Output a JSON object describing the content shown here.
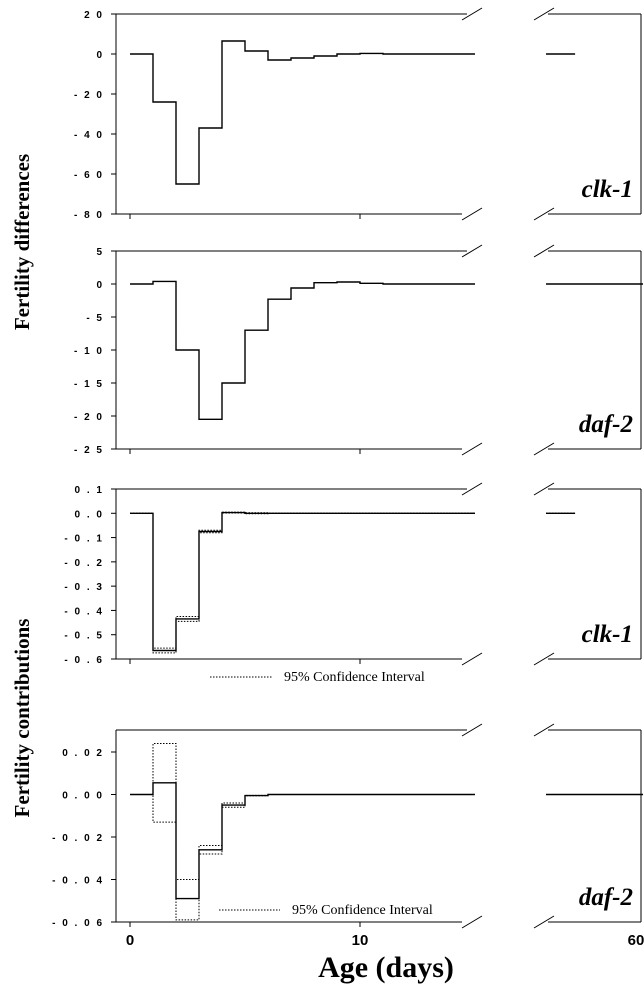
{
  "figure": {
    "ylabel_top": "Fertility differences",
    "ylabel_bottom": "Fertility contributions",
    "xlabel": "Age (days)",
    "ci_label": "95% Confidence Interval"
  },
  "chart_data": [
    {
      "type": "line",
      "step": true,
      "gene": "clk-1",
      "ylim": [
        -80,
        20
      ],
      "yticks": [
        "2 0",
        "0",
        "- 2 0",
        "- 4 0",
        "- 6 0",
        "- 8 0"
      ],
      "ytick_values": [
        20,
        0,
        -20,
        -40,
        -60,
        -80
      ],
      "xticks": [
        "0",
        "10",
        "60"
      ],
      "axis_break": true,
      "series": [
        {
          "x": [
            0,
            1,
            2,
            3,
            4,
            5,
            6,
            7,
            8,
            9,
            10,
            11,
            12,
            13,
            14,
            15
          ],
          "values": [
            0,
            -24,
            -65,
            -37,
            6.5,
            1.5,
            -3,
            -2,
            -1,
            0,
            0.3,
            0,
            0,
            0,
            0,
            0
          ]
        }
      ],
      "late_x": [
        58,
        61
      ],
      "late_value": 0
    },
    {
      "type": "line",
      "step": true,
      "gene": "daf-2",
      "ylim": [
        -25,
        5
      ],
      "yticks": [
        "5",
        "0",
        "- 5",
        "- 1 0",
        "- 1 5",
        "- 2 0",
        "- 2 5"
      ],
      "ytick_values": [
        5,
        0,
        -5,
        -10,
        -15,
        -20,
        -25
      ],
      "xticks": [
        "0",
        "10",
        "60"
      ],
      "axis_break": true,
      "series": [
        {
          "x": [
            0,
            1,
            2,
            3,
            4,
            5,
            6,
            7,
            8,
            9,
            10,
            11,
            12,
            13,
            14,
            15
          ],
          "values": [
            0,
            0.4,
            -10,
            -20.5,
            -15,
            -7,
            -2.3,
            -0.6,
            0.2,
            0.3,
            0.1,
            0,
            0,
            0,
            0,
            0
          ]
        }
      ],
      "late_x": [
        58,
        68
      ],
      "late_value": 0
    },
    {
      "type": "line",
      "step": true,
      "gene": "clk-1",
      "ylim": [
        -0.6,
        0.1
      ],
      "yticks": [
        "0 . 1",
        "0 . 0",
        "- 0 . 1",
        "- 0 . 2",
        "- 0 . 3",
        "- 0 . 4",
        "- 0 . 5",
        "- 0 . 6"
      ],
      "ytick_values": [
        0.1,
        0,
        -0.1,
        -0.2,
        -0.3,
        -0.4,
        -0.5,
        -0.6
      ],
      "xticks": [
        "0",
        "10",
        "60"
      ],
      "axis_break": true,
      "series": [
        {
          "name": "estimate",
          "x": [
            0,
            1,
            2,
            3,
            4,
            5,
            6,
            7,
            8,
            9,
            10,
            11,
            12,
            13,
            14,
            15
          ],
          "values": [
            0,
            -0.565,
            -0.435,
            -0.075,
            0.003,
            0,
            0,
            0,
            0,
            0,
            0,
            0,
            0,
            0,
            0,
            0
          ]
        },
        {
          "name": "ci_upper",
          "x": [
            0,
            1,
            2,
            3,
            4,
            5,
            6,
            7,
            8,
            9,
            10,
            11,
            12,
            13,
            14,
            15
          ],
          "values": [
            0,
            -0.555,
            -0.425,
            -0.07,
            0.005,
            0.002,
            0,
            0,
            0,
            0,
            0,
            0,
            0,
            0,
            0,
            0
          ]
        },
        {
          "name": "ci_lower",
          "x": [
            0,
            1,
            2,
            3,
            4,
            5,
            6,
            7,
            8,
            9,
            10,
            11,
            12,
            13,
            14,
            15
          ],
          "values": [
            0,
            -0.575,
            -0.445,
            -0.08,
            0.001,
            -0.002,
            0,
            0,
            0,
            0,
            0,
            0,
            0,
            0,
            0,
            0
          ]
        }
      ],
      "late_x": [
        58,
        61
      ],
      "late_value": 0
    },
    {
      "type": "line",
      "step": true,
      "gene": "daf-2",
      "ylim": [
        -0.06,
        0.03
      ],
      "yticks": [
        "0 . 0 2",
        "0 . 0 0",
        "- 0 . 0 2",
        "- 0 . 0 4",
        "- 0 . 0 6"
      ],
      "ytick_values": [
        0.02,
        0,
        -0.02,
        -0.04,
        -0.06
      ],
      "xticks": [
        "0",
        "10",
        "60"
      ],
      "axis_break": true,
      "series": [
        {
          "name": "estimate",
          "x": [
            0,
            1,
            2,
            3,
            4,
            5,
            6,
            7,
            8,
            9,
            10,
            11,
            12,
            13,
            14,
            15
          ],
          "values": [
            0,
            0.0055,
            -0.049,
            -0.026,
            -0.005,
            -0.0005,
            0,
            0,
            0,
            0,
            0,
            0,
            0,
            0,
            0,
            0
          ]
        },
        {
          "name": "ci_upper",
          "x": [
            0,
            1,
            2,
            3,
            4,
            5,
            6,
            7,
            8,
            9,
            10,
            11,
            12,
            13,
            14,
            15
          ],
          "values": [
            0,
            0.024,
            -0.04,
            -0.024,
            -0.004,
            -0.0004,
            0,
            0,
            0,
            0,
            0,
            0,
            0,
            0,
            0,
            0
          ]
        },
        {
          "name": "ci_lower",
          "x": [
            0,
            1,
            2,
            3,
            4,
            5,
            6,
            7,
            8,
            9,
            10,
            11,
            12,
            13,
            14,
            15
          ],
          "values": [
            0,
            -0.013,
            -0.059,
            -0.028,
            -0.006,
            -0.0006,
            0,
            0,
            0,
            0,
            0,
            0,
            0,
            0,
            0,
            0
          ]
        }
      ],
      "late_x": [
        58,
        68
      ],
      "late_value": 0
    }
  ]
}
